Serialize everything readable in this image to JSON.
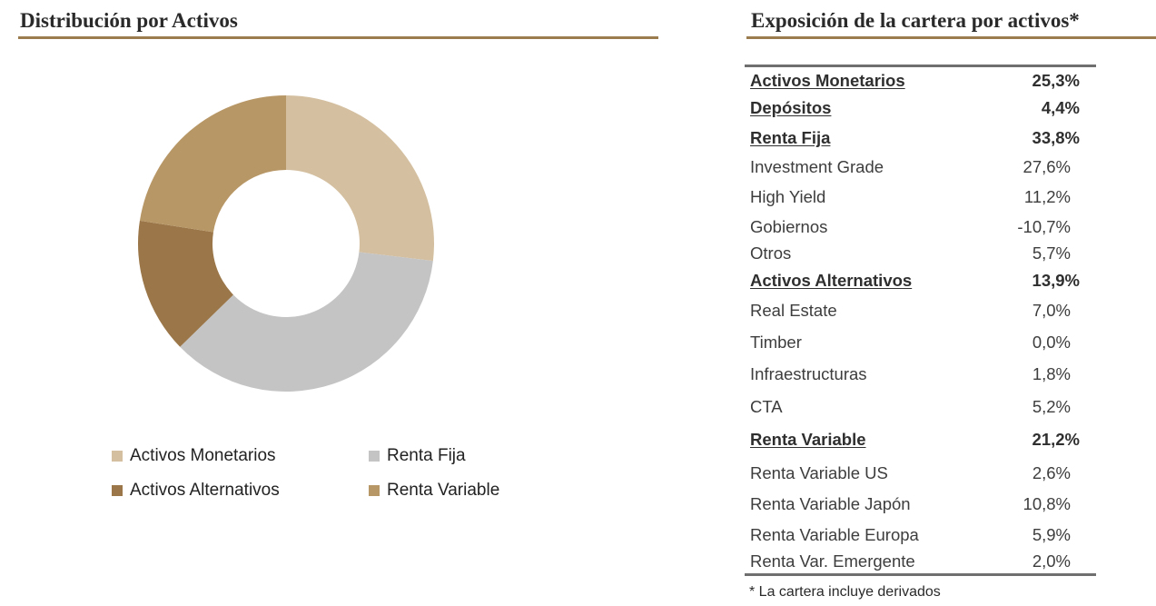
{
  "left_panel": {
    "title": "Distribución por Activos"
  },
  "right_panel": {
    "title": "Exposición de la cartera por activos*"
  },
  "chart_data": {
    "type": "pie",
    "title": "Distribución por Activos",
    "donut": true,
    "legend_position": "bottom",
    "categories": [
      "Activos Monetarios",
      "Renta Fija",
      "Activos Alternativos",
      "Renta Variable"
    ],
    "values": [
      29.7,
      39.6,
      16.3,
      24.9
    ],
    "colors": [
      "#d4c0a0",
      "#c4c4c4",
      "#9a7648",
      "#b89766"
    ]
  },
  "legend": {
    "items": [
      {
        "label": "Activos Monetarios",
        "color": "#d4c0a0"
      },
      {
        "label": "Renta Fija",
        "color": "#c4c4c4"
      },
      {
        "label": "Activos Alternativos",
        "color": "#9a7648"
      },
      {
        "label": "Renta Variable",
        "color": "#b89766"
      }
    ]
  },
  "table": {
    "rows": [
      {
        "label": "Activos Monetarios",
        "value": "25,3%",
        "group": true
      },
      {
        "label": "Depósitos",
        "value": "4,4%",
        "group": true
      },
      {
        "label": "Renta Fija",
        "value": "33,8%",
        "group": true
      },
      {
        "label": "Investment Grade",
        "value": "27,6%",
        "group": false
      },
      {
        "label": "High Yield",
        "value": "11,2%",
        "group": false
      },
      {
        "label": "Gobiernos",
        "value": "-10,7%",
        "group": false
      },
      {
        "label": "Otros",
        "value": "5,7%",
        "group": false
      },
      {
        "label": "Activos Alternativos",
        "value": "13,9%",
        "group": true
      },
      {
        "label": "Real  Estate",
        "value": "7,0%",
        "group": false
      },
      {
        "label": "Timber",
        "value": "0,0%",
        "group": false
      },
      {
        "label": "Infraestructuras",
        "value": "1,8%",
        "group": false
      },
      {
        "label": "CTA",
        "value": "5,2%",
        "group": false
      },
      {
        "label": "Renta Variable",
        "value": "21,2%",
        "group": true
      },
      {
        "label": "Renta Variable US",
        "value": "2,6%",
        "group": false
      },
      {
        "label": "Renta Variable Japón",
        "value": "10,8%",
        "group": false
      },
      {
        "label": "Renta Variable Europa",
        "value": "5,9%",
        "group": false
      },
      {
        "label": "Renta Var. Emergente",
        "value": "2,0%",
        "group": false
      }
    ],
    "footnote": "* La cartera incluye derivados"
  }
}
